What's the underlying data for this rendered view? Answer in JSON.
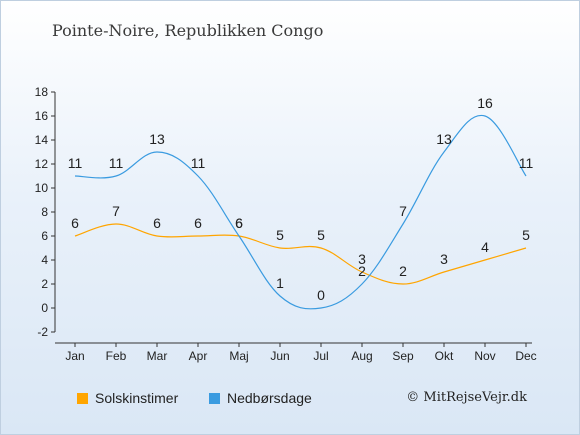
{
  "title": "Pointe-Noire, Republikken Congo",
  "copyright": "© MitRejseVejr.dk",
  "legend": {
    "sun_label": "Solskinstimer",
    "rain_label": "Nedbørsdage"
  },
  "colors": {
    "sun": "#ffa500",
    "rain": "#3a9be0"
  },
  "chart_data": {
    "type": "line",
    "categories": [
      "Jan",
      "Feb",
      "Mar",
      "Apr",
      "Maj",
      "Jun",
      "Jul",
      "Aug",
      "Sep",
      "Okt",
      "Nov",
      "Dec"
    ],
    "series": [
      {
        "name": "Solskinstimer",
        "values": [
          6,
          7,
          6,
          6,
          6,
          5,
          5,
          3,
          2,
          3,
          4,
          5
        ]
      },
      {
        "name": "Nedbørsdage",
        "values": [
          11,
          11,
          13,
          11,
          6,
          1,
          0,
          2,
          7,
          13,
          16,
          11
        ]
      }
    ],
    "yticks": [
      -2,
      0,
      2,
      4,
      6,
      8,
      10,
      12,
      14,
      16,
      18
    ],
    "ylim": [
      -2,
      18
    ],
    "grid": false,
    "legend_position": "bottom"
  }
}
